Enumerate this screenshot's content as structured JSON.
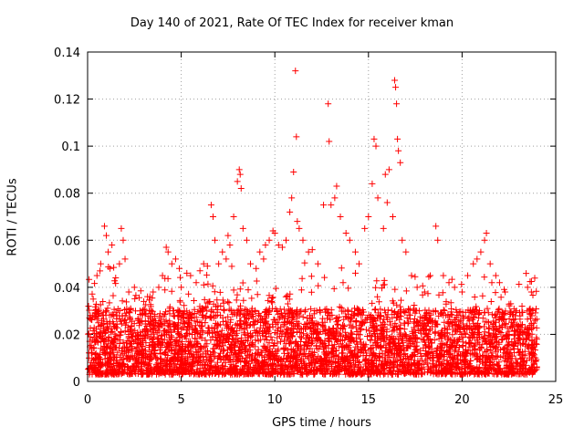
{
  "chart_data": {
    "type": "scatter",
    "title": "Day 140 of 2021, Rate Of TEC Index for receiver kman",
    "xlabel": "GPS time / hours",
    "ylabel": "ROTI / TECUs",
    "xlim": [
      0,
      25
    ],
    "ylim": [
      0,
      0.14
    ],
    "xticks": [
      0,
      5,
      10,
      15,
      20,
      25
    ],
    "xtick_labels": [
      "0",
      "5",
      "10",
      "15",
      "20",
      "25"
    ],
    "yticks": [
      0,
      0.02,
      0.04,
      0.06,
      0.08,
      0.1,
      0.12,
      0.14
    ],
    "ytick_labels": [
      "0",
      "0.02",
      "0.04",
      "0.06",
      "0.08",
      "0.1",
      "0.12",
      "0.14"
    ],
    "grid": true,
    "marker": "+",
    "color": "#ff0000",
    "series": [
      {
        "name": "ROTI",
        "points": [
          [
            0.05,
            0.032
          ],
          [
            0.1,
            0.027
          ],
          [
            0.2,
            0.012
          ],
          [
            0.3,
            0.035
          ],
          [
            0.5,
            0.045
          ],
          [
            0.6,
            0.03
          ],
          [
            0.7,
            0.05
          ],
          [
            0.9,
            0.066
          ],
          [
            1.0,
            0.062
          ],
          [
            1.1,
            0.055
          ],
          [
            1.2,
            0.048
          ],
          [
            1.3,
            0.058
          ],
          [
            1.5,
            0.044
          ],
          [
            1.7,
            0.05
          ],
          [
            1.8,
            0.065
          ],
          [
            1.9,
            0.06
          ],
          [
            2.0,
            0.052
          ],
          [
            2.2,
            0.038
          ],
          [
            2.5,
            0.04
          ],
          [
            2.8,
            0.03
          ],
          [
            3.0,
            0.034
          ],
          [
            3.2,
            0.036
          ],
          [
            3.5,
            0.038
          ],
          [
            3.8,
            0.04
          ],
          [
            4.0,
            0.045
          ],
          [
            4.2,
            0.057
          ],
          [
            4.3,
            0.055
          ],
          [
            4.5,
            0.05
          ],
          [
            4.7,
            0.052
          ],
          [
            4.9,
            0.048
          ],
          [
            5.0,
            0.04
          ],
          [
            5.3,
            0.046
          ],
          [
            5.5,
            0.045
          ],
          [
            5.8,
            0.042
          ],
          [
            6.0,
            0.047
          ],
          [
            6.2,
            0.05
          ],
          [
            6.4,
            0.049
          ],
          [
            6.6,
            0.075
          ],
          [
            6.7,
            0.07
          ],
          [
            6.8,
            0.06
          ],
          [
            7.0,
            0.05
          ],
          [
            7.2,
            0.055
          ],
          [
            7.4,
            0.052
          ],
          [
            7.5,
            0.062
          ],
          [
            7.6,
            0.058
          ],
          [
            7.8,
            0.07
          ],
          [
            8.0,
            0.085
          ],
          [
            8.1,
            0.09
          ],
          [
            8.15,
            0.088
          ],
          [
            8.2,
            0.082
          ],
          [
            8.3,
            0.065
          ],
          [
            8.5,
            0.06
          ],
          [
            8.7,
            0.05
          ],
          [
            9.0,
            0.048
          ],
          [
            9.2,
            0.055
          ],
          [
            9.4,
            0.052
          ],
          [
            9.5,
            0.058
          ],
          [
            9.7,
            0.06
          ],
          [
            9.9,
            0.064
          ],
          [
            10.0,
            0.063
          ],
          [
            10.2,
            0.058
          ],
          [
            10.4,
            0.057
          ],
          [
            10.6,
            0.06
          ],
          [
            10.8,
            0.072
          ],
          [
            10.9,
            0.078
          ],
          [
            11.0,
            0.089
          ],
          [
            11.1,
            0.132
          ],
          [
            11.15,
            0.104
          ],
          [
            11.2,
            0.068
          ],
          [
            11.3,
            0.065
          ],
          [
            11.5,
            0.06
          ],
          [
            11.8,
            0.055
          ],
          [
            12.0,
            0.056
          ],
          [
            12.3,
            0.05
          ],
          [
            12.6,
            0.075
          ],
          [
            12.85,
            0.118
          ],
          [
            12.9,
            0.102
          ],
          [
            13.0,
            0.075
          ],
          [
            13.2,
            0.078
          ],
          [
            13.3,
            0.083
          ],
          [
            13.5,
            0.07
          ],
          [
            13.8,
            0.063
          ],
          [
            14.0,
            0.06
          ],
          [
            14.3,
            0.055
          ],
          [
            14.5,
            0.05
          ],
          [
            14.8,
            0.065
          ],
          [
            15.0,
            0.07
          ],
          [
            15.2,
            0.084
          ],
          [
            15.3,
            0.103
          ],
          [
            15.4,
            0.1
          ],
          [
            15.5,
            0.078
          ],
          [
            15.8,
            0.065
          ],
          [
            15.9,
            0.088
          ],
          [
            16.0,
            0.076
          ],
          [
            16.1,
            0.09
          ],
          [
            16.3,
            0.07
          ],
          [
            16.4,
            0.128
          ],
          [
            16.45,
            0.125
          ],
          [
            16.5,
            0.118
          ],
          [
            16.55,
            0.103
          ],
          [
            16.6,
            0.098
          ],
          [
            16.7,
            0.093
          ],
          [
            16.8,
            0.06
          ],
          [
            17.0,
            0.055
          ],
          [
            17.3,
            0.045
          ],
          [
            17.6,
            0.04
          ],
          [
            18.0,
            0.038
          ],
          [
            18.3,
            0.045
          ],
          [
            18.6,
            0.066
          ],
          [
            18.7,
            0.06
          ],
          [
            19.0,
            0.045
          ],
          [
            19.3,
            0.042
          ],
          [
            19.6,
            0.04
          ],
          [
            20.0,
            0.038
          ],
          [
            20.3,
            0.045
          ],
          [
            20.6,
            0.05
          ],
          [
            20.8,
            0.052
          ],
          [
            21.0,
            0.055
          ],
          [
            21.2,
            0.06
          ],
          [
            21.3,
            0.063
          ],
          [
            21.5,
            0.05
          ],
          [
            21.8,
            0.045
          ],
          [
            22.0,
            0.042
          ],
          [
            22.3,
            0.038
          ],
          [
            22.6,
            0.033
          ],
          [
            22.9,
            0.03
          ],
          [
            23.2,
            0.032
          ],
          [
            23.5,
            0.04
          ],
          [
            23.7,
            0.038
          ],
          [
            23.9,
            0.026
          ]
        ]
      }
    ]
  }
}
